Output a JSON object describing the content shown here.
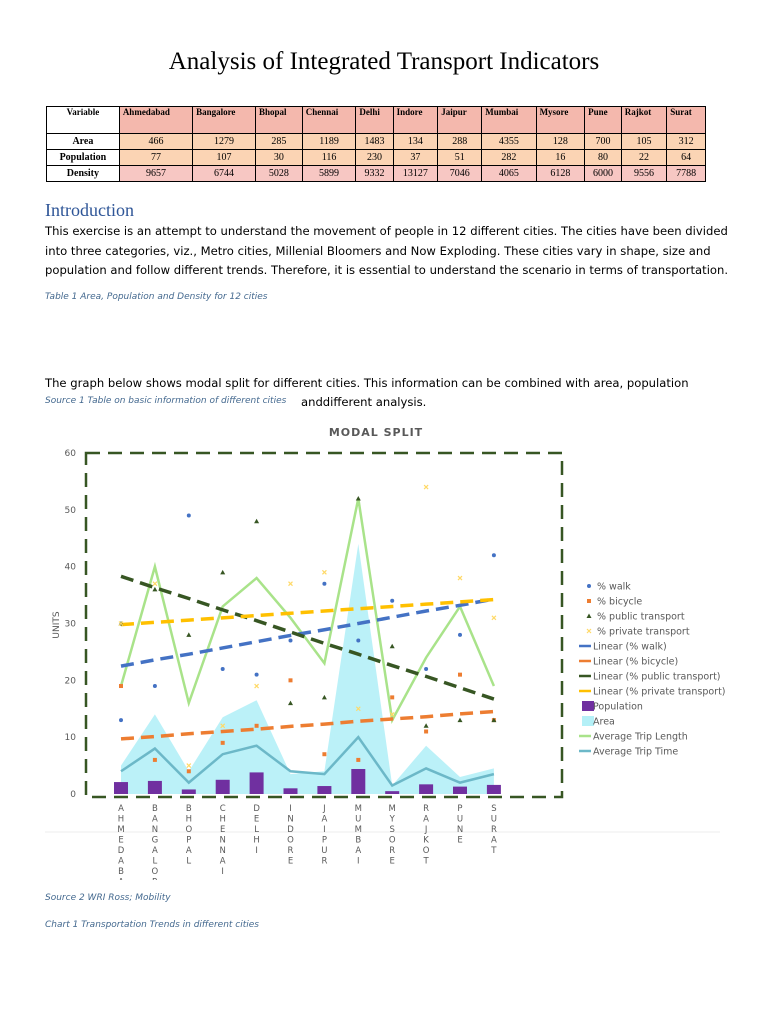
{
  "title": "Analysis of Integrated Transport Indicators",
  "table": {
    "header": [
      "Variable",
      "Ahmedabad",
      "Bangalore",
      "Bhopal",
      "Chennai",
      "Delhi",
      "Indore",
      "Jaipur",
      "Mumbai",
      "Mysore",
      "Pune",
      "Rajkot",
      "Surat"
    ],
    "rows": [
      [
        "Area",
        466,
        1279,
        285,
        1189,
        1483,
        134,
        288,
        4355,
        128,
        700,
        105,
        312
      ],
      [
        "Population",
        77,
        107,
        30,
        116,
        230,
        37,
        51,
        282,
        16,
        80,
        22,
        64
      ],
      [
        "Density",
        9657,
        6744,
        5028,
        5899,
        9332,
        13127,
        7046,
        4065,
        6128,
        6000,
        9556,
        7788
      ]
    ]
  },
  "introduction": {
    "heading": "Introduction",
    "lines": [
      "This exercise is an attempt to understand the movement of people in 12 different cities. The cities have been divided",
      "into three categories, viz., Metro cities, Millenial Bloomers and Now Exploding. These cities vary in shape, size and",
      "population and follow different trends. Therefore, it is essential to understand the scenario in terms of transportation."
    ]
  },
  "table_caption": "Table 1 Area, Population and Density for 12 cities",
  "paragraph2": "The graph below shows modal split for different cities. This information can be combined with area, population",
  "source1": "Source 1 Table on basic information of different cities",
  "paragraph2_end": "anddifferent analysis.",
  "source2": "Source 2 WRI Ross; Mobility",
  "chart_caption": "Chart 1 Transportation Trends in different cities",
  "chart_data": {
    "type": "combo",
    "title": "MODAL SPLIT",
    "y_label": "UNITS",
    "categories": [
      "AHMEDABAD",
      "BANGALORE",
      "BHOPAL",
      "CHENNAI",
      "DELHI",
      "INDORE",
      "JAIPUR",
      "MUMBAI",
      "MYSORE",
      "RAJKOT",
      "PUNE",
      "SURAT"
    ],
    "ylim": [
      0,
      60
    ],
    "yticks": [
      0,
      10,
      20,
      30,
      40,
      50,
      60
    ],
    "series": [
      {
        "name": "% walk",
        "color": "#4472c4",
        "kind": "scatter",
        "marker": "circle",
        "values": [
          13,
          19,
          49,
          22,
          21,
          27,
          37,
          27,
          34,
          22,
          28,
          42
        ]
      },
      {
        "name": "% bicycle",
        "color": "#ed7d31",
        "kind": "scatter",
        "marker": "square",
        "values": [
          19,
          6,
          4,
          9,
          12,
          20,
          7,
          6,
          17,
          11,
          21,
          13
        ]
      },
      {
        "name": "% public transport",
        "color": "#375623",
        "kind": "scatter",
        "marker": "triangle",
        "values": [
          30,
          36,
          28,
          39,
          48,
          16,
          17,
          52,
          26,
          12,
          13,
          13
        ]
      },
      {
        "name": "% private transport",
        "color": "#ffd966",
        "kind": "scatter",
        "marker": "cross",
        "values": [
          30,
          37,
          5,
          12,
          19,
          37,
          39,
          15,
          14,
          54,
          38,
          31
        ]
      },
      {
        "name": "Linear (% walk)",
        "color": "#4472c4",
        "kind": "trend",
        "values": [
          22.5,
          23.6,
          24.6,
          25.7,
          26.8,
          27.9,
          28.9,
          30.0,
          31.1,
          32.2,
          33.2,
          34.3
        ]
      },
      {
        "name": "Linear (% bicycle)",
        "color": "#ed7d31",
        "kind": "trend",
        "values": [
          9.7,
          10.1,
          10.6,
          11.0,
          11.4,
          11.9,
          12.3,
          12.8,
          13.2,
          13.6,
          14.1,
          14.5
        ]
      },
      {
        "name": "Linear (% public transport)",
        "color": "#375623",
        "kind": "trend",
        "values": [
          38.3,
          36.3,
          34.4,
          32.4,
          30.5,
          28.5,
          26.5,
          24.6,
          22.6,
          20.7,
          18.7,
          16.7
        ]
      },
      {
        "name": "Linear (% private transport)",
        "color": "#ffc000",
        "kind": "trend",
        "values": [
          29.8,
          30.2,
          30.6,
          31.0,
          31.4,
          31.8,
          32.2,
          32.6,
          33.0,
          33.4,
          33.8,
          34.2
        ]
      },
      {
        "name": "Population",
        "color": "#7030a0",
        "kind": "bar",
        "values": [
          2.1,
          2.3,
          0.8,
          2.5,
          3.8,
          1.0,
          1.4,
          4.4,
          0.5,
          1.7,
          1.3,
          1.6
        ]
      },
      {
        "name": "Area",
        "color": "#b4f0f7",
        "kind": "area",
        "values": [
          5,
          14,
          4,
          13.5,
          16.5,
          3.5,
          4,
          44,
          1.5,
          8.5,
          3,
          4.5
        ]
      },
      {
        "name": "Average Trip Length",
        "color": "#a9e38a",
        "kind": "line",
        "values": [
          19,
          40,
          16,
          33,
          38,
          31,
          23,
          52,
          13,
          24,
          33,
          19
        ]
      },
      {
        "name": "Average Trip Time",
        "color": "#6cb8c8",
        "kind": "line",
        "values": [
          4,
          8,
          2,
          7,
          8.5,
          4,
          3.5,
          10,
          1.5,
          4.5,
          2,
          3.5
        ]
      }
    ]
  }
}
